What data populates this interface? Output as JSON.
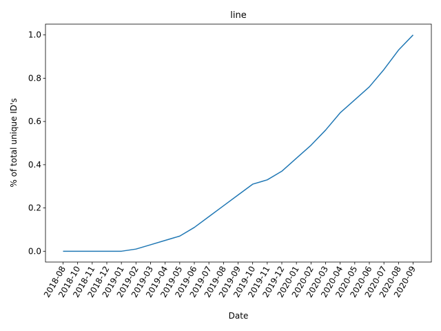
{
  "chart_data": {
    "type": "line",
    "title": "line",
    "xlabel": "Date",
    "ylabel": "% of total unique ID's",
    "ylim": [
      -0.05,
      1.05
    ],
    "yticks": [
      0.0,
      0.2,
      0.4,
      0.6,
      0.8,
      1.0
    ],
    "ytick_labels": [
      "0.0",
      "0.2",
      "0.4",
      "0.6",
      "0.8",
      "1.0"
    ],
    "grid": false,
    "line_color": "#1f77b4",
    "x": [
      "2018-08",
      "2018-10",
      "2018-11",
      "2018-12",
      "2019-01",
      "2019-02",
      "2019-03",
      "2019-04",
      "2019-05",
      "2019-06",
      "2019-07",
      "2019-08",
      "2019-09",
      "2019-10",
      "2019-11",
      "2019-12",
      "2020-01",
      "2020-02",
      "2020-03",
      "2020-04",
      "2020-05",
      "2020-06",
      "2020-07",
      "2020-08",
      "2020-09"
    ],
    "series": [
      {
        "values": [
          0.0,
          0.0,
          0.0,
          0.0,
          0.0,
          0.01,
          0.03,
          0.05,
          0.07,
          0.11,
          0.16,
          0.21,
          0.26,
          0.31,
          0.33,
          0.37,
          0.43,
          0.49,
          0.56,
          0.64,
          0.7,
          0.76,
          0.84,
          0.93,
          1.0
        ]
      }
    ]
  }
}
